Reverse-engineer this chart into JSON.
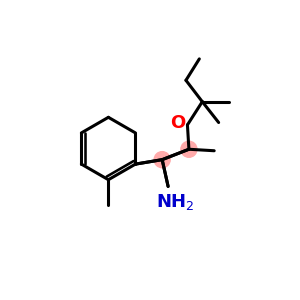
{
  "background_color": "#ffffff",
  "bond_color": "#000000",
  "atom_O_color": "#ff0000",
  "atom_N_color": "#0000cc",
  "atom_C_highlight_color": "#ffaaaa",
  "figsize": [
    3.0,
    3.0
  ],
  "dpi": 100
}
